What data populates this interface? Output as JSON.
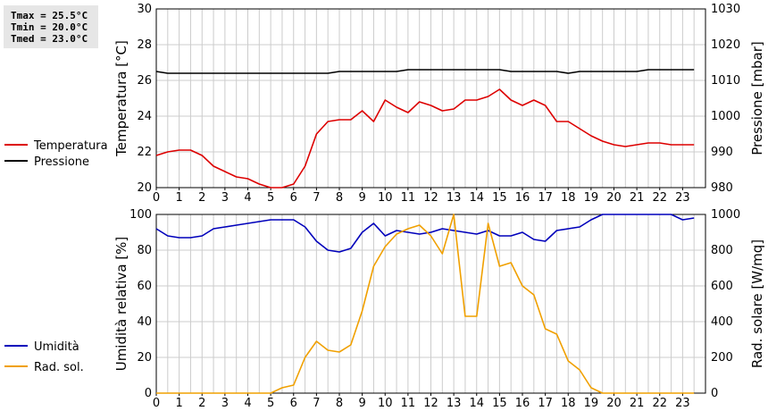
{
  "stats": {
    "tmax": "Tmax = 25.5°C",
    "tmin": "Tmin = 20.0°C",
    "tmed": "Tmed = 23.0°C"
  },
  "colors": {
    "temperature": "#dd0000",
    "pressure": "#000000",
    "humidity": "#0000bb",
    "solar": "#f0a000",
    "grid": "#cccccc"
  },
  "chart_data": [
    {
      "type": "line",
      "xlim": [
        0,
        24
      ],
      "xticks": [
        "0",
        "1",
        "2",
        "3",
        "4",
        "5",
        "6",
        "7",
        "8",
        "9",
        "10",
        "11",
        "12",
        "13",
        "14",
        "15",
        "16",
        "17",
        "18",
        "19",
        "20",
        "21",
        "22",
        "23"
      ],
      "ylabel": "Temperatura [°C]",
      "ylim": [
        20,
        30
      ],
      "yticks": [
        "20",
        "22",
        "24",
        "26",
        "28",
        "30"
      ],
      "y2label": "Pressione [mbar]",
      "y2lim": [
        980,
        1030
      ],
      "y2ticks": [
        "980",
        "990",
        "1000",
        "1010",
        "1020",
        "1030"
      ],
      "grid": true,
      "legend_position": "left",
      "series": [
        {
          "name": "Temperatura",
          "axis": "left",
          "color": "#dd0000",
          "x": [
            0,
            0.5,
            1,
            1.5,
            2,
            2.5,
            3,
            3.5,
            4,
            4.5,
            5,
            5.5,
            6,
            6.5,
            7,
            7.5,
            8,
            8.5,
            9,
            9.5,
            10,
            10.5,
            11,
            11.5,
            12,
            12.5,
            13,
            13.5,
            14,
            14.5,
            15,
            15.5,
            16,
            16.5,
            17,
            17.5,
            18,
            18.5,
            19,
            19.5,
            20,
            20.5,
            21,
            21.5,
            22,
            22.5,
            23,
            23.5
          ],
          "values": [
            21.8,
            22.0,
            22.1,
            22.1,
            21.8,
            21.2,
            20.9,
            20.6,
            20.5,
            20.2,
            20.0,
            20.0,
            20.2,
            21.2,
            23.0,
            23.7,
            23.8,
            23.8,
            24.3,
            23.7,
            24.9,
            24.5,
            24.2,
            24.8,
            24.6,
            24.3,
            24.4,
            24.9,
            24.9,
            25.1,
            25.5,
            24.9,
            24.6,
            24.9,
            24.6,
            23.7,
            23.7,
            23.3,
            22.9,
            22.6,
            22.4,
            22.3,
            22.4,
            22.5,
            22.5,
            22.4,
            22.4,
            22.4
          ]
        },
        {
          "name": "Pressione",
          "axis": "right",
          "color": "#000000",
          "x": [
            0,
            0.5,
            1,
            1.5,
            2,
            2.5,
            3,
            3.5,
            4,
            4.5,
            5,
            5.5,
            6,
            6.5,
            7,
            7.5,
            8,
            8.5,
            9,
            9.5,
            10,
            10.5,
            11,
            11.5,
            12,
            12.5,
            13,
            13.5,
            14,
            14.5,
            15,
            15.5,
            16,
            16.5,
            17,
            17.5,
            18,
            18.5,
            19,
            19.5,
            20,
            20.5,
            21,
            21.5,
            22,
            22.5,
            23,
            23.5
          ],
          "values": [
            1012.5,
            1012,
            1012,
            1012,
            1012,
            1012,
            1012,
            1012,
            1012,
            1012,
            1012,
            1012,
            1012,
            1012,
            1012,
            1012,
            1012.5,
            1012.5,
            1012.5,
            1012.5,
            1012.5,
            1012.5,
            1013,
            1013,
            1013,
            1013,
            1013,
            1013,
            1013,
            1013,
            1013,
            1012.5,
            1012.5,
            1012.5,
            1012.5,
            1012.5,
            1012,
            1012.5,
            1012.5,
            1012.5,
            1012.5,
            1012.5,
            1012.5,
            1013,
            1013,
            1013,
            1013,
            1013
          ]
        }
      ]
    },
    {
      "type": "line",
      "xlim": [
        0,
        24
      ],
      "xticks": [
        "0",
        "1",
        "2",
        "3",
        "4",
        "5",
        "6",
        "7",
        "8",
        "9",
        "10",
        "11",
        "12",
        "13",
        "14",
        "15",
        "16",
        "17",
        "18",
        "19",
        "20",
        "21",
        "22",
        "23"
      ],
      "ylabel": "Umidità relativa [%]",
      "ylim": [
        0,
        100
      ],
      "yticks": [
        "0",
        "20",
        "40",
        "60",
        "80",
        "100"
      ],
      "y2label": "Rad. solare [W/mq]",
      "y2lim": [
        0,
        1000
      ],
      "y2ticks": [
        "0",
        "200",
        "400",
        "600",
        "800",
        "1000"
      ],
      "grid": true,
      "legend_position": "left",
      "series": [
        {
          "name": "Umidità",
          "axis": "left",
          "color": "#0000bb",
          "x": [
            0,
            0.5,
            1,
            1.5,
            2,
            2.5,
            3,
            3.5,
            4,
            4.5,
            5,
            5.5,
            6,
            6.5,
            7,
            7.5,
            8,
            8.5,
            9,
            9.5,
            10,
            10.5,
            11,
            11.5,
            12,
            12.5,
            13,
            13.5,
            14,
            14.5,
            15,
            15.5,
            16,
            16.5,
            17,
            17.5,
            18,
            18.5,
            19,
            19.5,
            20,
            20.5,
            21,
            21.5,
            22,
            22.5,
            23,
            23.5
          ],
          "values": [
            92,
            88,
            87,
            87,
            88,
            92,
            93,
            94,
            95,
            96,
            97,
            97,
            97,
            93,
            85,
            80,
            79,
            81,
            90,
            95,
            88,
            91,
            90,
            89,
            90,
            92,
            91,
            90,
            89,
            91,
            88,
            88,
            90,
            86,
            85,
            91,
            92,
            93,
            97,
            100,
            100,
            100,
            100,
            100,
            100,
            100,
            97,
            98
          ]
        },
        {
          "name": "Rad. sol.",
          "axis": "right",
          "color": "#f0a000",
          "x": [
            0,
            0.5,
            1,
            1.5,
            2,
            2.5,
            3,
            3.5,
            4,
            4.5,
            5,
            5.5,
            6,
            6.5,
            7,
            7.5,
            8,
            8.5,
            9,
            9.5,
            10,
            10.5,
            11,
            11.5,
            12,
            12.5,
            13,
            13.5,
            14,
            14.5,
            15,
            15.5,
            16,
            16.5,
            17,
            17.5,
            18,
            18.5,
            19,
            19.5,
            20,
            20.5,
            21,
            21.5,
            22,
            22.5,
            23,
            23.5
          ],
          "values": [
            0,
            0,
            0,
            0,
            0,
            0,
            0,
            0,
            0,
            0,
            0,
            30,
            45,
            200,
            290,
            240,
            230,
            270,
            460,
            710,
            820,
            890,
            920,
            940,
            880,
            780,
            1000,
            430,
            430,
            950,
            710,
            730,
            600,
            550,
            360,
            330,
            180,
            130,
            30,
            0,
            0,
            0,
            0,
            0,
            0,
            0,
            0,
            0
          ]
        }
      ]
    }
  ]
}
